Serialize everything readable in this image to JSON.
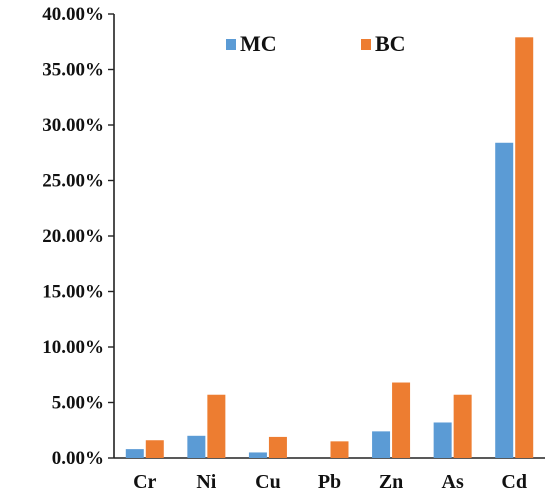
{
  "chart_data": {
    "type": "bar",
    "title": "",
    "xlabel": "",
    "ylabel": "",
    "categories": [
      "Cr",
      "Ni",
      "Cu",
      "Pb",
      "Zn",
      "As",
      "Cd"
    ],
    "series": [
      {
        "name": "MC",
        "color": "#5b9bd5",
        "values": [
          0.8,
          2.0,
          0.5,
          0.0,
          2.4,
          3.2,
          28.4
        ]
      },
      {
        "name": "BC",
        "color": "#ed7d31",
        "values": [
          1.6,
          5.7,
          1.9,
          1.5,
          6.8,
          5.7,
          37.9
        ]
      }
    ],
    "ylim": [
      0,
      40
    ],
    "yticks": [
      0,
      5,
      10,
      15,
      20,
      25,
      30,
      35,
      40
    ],
    "ytick_labels": [
      "0.00%",
      "5.00%",
      "10.00%",
      "15.00%",
      "20.00%",
      "25.00%",
      "30.00%",
      "35.00%",
      "40.00%"
    ],
    "y_unit": "%",
    "grid": false,
    "legend_position": "top"
  }
}
